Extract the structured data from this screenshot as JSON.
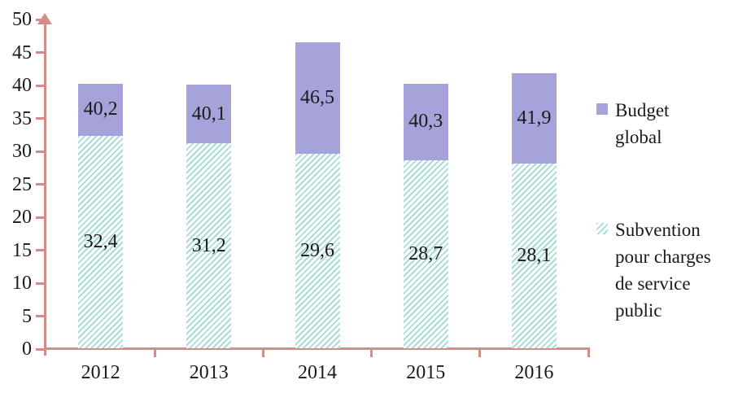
{
  "chart_data": {
    "type": "bar",
    "variant": "stacked",
    "title": "",
    "categories": [
      "2012",
      "2013",
      "2014",
      "2015",
      "2016"
    ],
    "series": [
      {
        "name": "Subvention pour charges de service public",
        "values": [
          32.4,
          31.2,
          29.6,
          28.7,
          28.1
        ],
        "labels": [
          "32,4",
          "31,2",
          "29,6",
          "28,7",
          "28,1"
        ],
        "fill": "hatched-diagonal",
        "color": "#a9dcd7"
      },
      {
        "name": "Budget global",
        "values": [
          40.2,
          40.1,
          46.5,
          40.3,
          41.9
        ],
        "labels": [
          "40,2",
          "40,1",
          "46,5",
          "40,3",
          "41,9"
        ],
        "values_are": "stacked-totals",
        "fill": "solid",
        "color": "#a6a3da"
      }
    ],
    "ylim": [
      0,
      50
    ],
    "y_ticks": [
      0,
      5,
      10,
      15,
      20,
      25,
      30,
      35,
      40,
      45,
      50
    ],
    "y_tick_labels": [
      "0",
      "5",
      "10",
      "15",
      "20",
      "25",
      "30",
      "35",
      "40",
      "45",
      "50"
    ],
    "grid": false,
    "legend_position": "right",
    "axis_color": "#d48c8a",
    "text_color": "#1a1a1a",
    "background": "#ffffff"
  }
}
